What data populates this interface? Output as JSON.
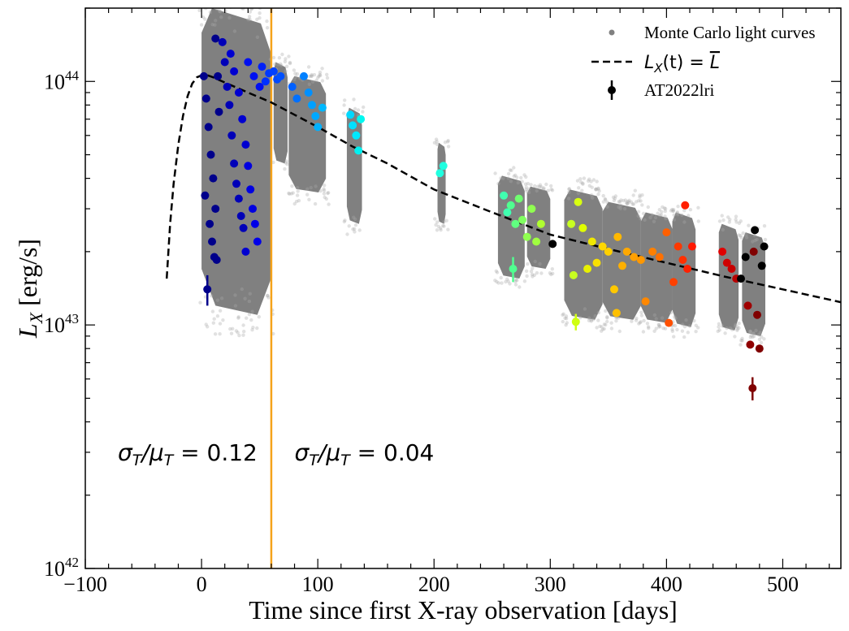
{
  "chart_data": {
    "type": "scatter",
    "xlabel": "Time since first X-ray observation [days]",
    "ylabel_main": "L",
    "ylabel_sub": "X",
    "ylabel_unit": "[erg/s]",
    "xlim": [
      -100,
      550
    ],
    "ylim": [
      1e+42,
      2e+44
    ],
    "yscale": "log",
    "x_ticks": [
      {
        "value": -100,
        "label": "−100"
      },
      {
        "value": 0,
        "label": "0"
      },
      {
        "value": 100,
        "label": "100"
      },
      {
        "value": 200,
        "label": "200"
      },
      {
        "value": 300,
        "label": "300"
      },
      {
        "value": 400,
        "label": "400"
      },
      {
        "value": 500,
        "label": "500"
      }
    ],
    "y_ticks": [
      {
        "value": 1e+42,
        "base": "10",
        "exp": "42"
      },
      {
        "value": 1e+43,
        "base": "10",
        "exp": "43"
      },
      {
        "value": 1e+44,
        "base": "10",
        "exp": "44"
      }
    ],
    "legend": {
      "position": "top-right",
      "entries": [
        {
          "label": "Monte Carlo light curves",
          "kind": "dot"
        },
        {
          "label": "L_X(t) = ̅L",
          "display_main": "L",
          "display_sub": "X",
          "display_rest": "(t) = ",
          "display_bar": "L",
          "kind": "dashed"
        },
        {
          "label": "AT2022lri",
          "kind": "errorbar"
        }
      ]
    },
    "vertical_line": {
      "x": 60,
      "color": "#f5a31a"
    },
    "annotations": [
      {
        "text_left": "σ",
        "sub1": "T",
        "mid": "/μ",
        "sub2": "T",
        "text_right": " = 0.12",
        "x": -72,
        "y": 3e+42
      },
      {
        "text_left": "σ",
        "sub1": "T",
        "mid": "/μ",
        "sub2": "T",
        "text_right": " = 0.04",
        "x": 80,
        "y": 3e+42
      }
    ],
    "model_curve": {
      "name": "L_X(t) = mean L",
      "x": [
        -30,
        -27,
        -24,
        -20,
        -16,
        -12,
        -8,
        -4,
        0,
        5,
        10,
        20,
        40,
        60,
        80,
        100,
        130,
        160,
        200,
        250,
        300,
        350,
        400,
        450,
        500,
        550
      ],
      "y": [
        1.55e+43,
        2.6e+43,
        3.8e+43,
        5.5e+43,
        7.2e+43,
        8.7e+43,
        9.8e+43,
        1.04e+44,
        1.06e+44,
        1.06e+44,
        1.04e+44,
        9.9e+43,
        9e+43,
        8.2e+43,
        7.3e+43,
        6.5e+43,
        5.4e+43,
        4.6e+43,
        3.6e+43,
        2.9e+43,
        2.35e+43,
        2.05e+43,
        1.8e+43,
        1.58e+43,
        1.4e+43,
        1.24e+43
      ]
    },
    "mc_bands": [
      {
        "x0": 0,
        "x1": 60,
        "y_hi": 2e+44,
        "y_lo": 1.1e+43
      },
      {
        "x0": 62,
        "x1": 74,
        "y_hi": 1.2e+44,
        "y_lo": 4.6e+43
      },
      {
        "x0": 75,
        "x1": 107,
        "y_hi": 1.05e+44,
        "y_lo": 3.5e+43
      },
      {
        "x0": 125,
        "x1": 138,
        "y_hi": 7.8e+43,
        "y_lo": 2.6e+43
      },
      {
        "x0": 203,
        "x1": 210,
        "y_hi": 5.6e+43,
        "y_lo": 2.6e+43
      },
      {
        "x0": 255,
        "x1": 278,
        "y_hi": 4.1e+43,
        "y_lo": 1.55e+43
      },
      {
        "x0": 280,
        "x1": 300,
        "y_hi": 3.7e+43,
        "y_lo": 1.7e+43
      },
      {
        "x0": 312,
        "x1": 345,
        "y_hi": 3.6e+43,
        "y_lo": 1.05e+43
      },
      {
        "x0": 345,
        "x1": 378,
        "y_hi": 3.2e+43,
        "y_lo": 1.05e+43
      },
      {
        "x0": 378,
        "x1": 405,
        "y_hi": 2.9e+43,
        "y_lo": 1.02e+43
      },
      {
        "x0": 405,
        "x1": 425,
        "y_hi": 2.9e+43,
        "y_lo": 9.8e+42
      },
      {
        "x0": 445,
        "x1": 462,
        "y_hi": 2.6e+43,
        "y_lo": 9.5e+42
      },
      {
        "x0": 465,
        "x1": 485,
        "y_hi": 2.4e+43,
        "y_lo": 9e+42
      }
    ],
    "observations": [
      {
        "t": 5,
        "L": 1.4e+43,
        "err": 2e+42,
        "color": "#00008b"
      },
      {
        "t": 2,
        "L": 1.05e+44,
        "color": "#00008b"
      },
      {
        "t": 4,
        "L": 8.5e+43,
        "color": "#00008b"
      },
      {
        "t": 6,
        "L": 6.5e+43,
        "color": "#00008b"
      },
      {
        "t": 8,
        "L": 5e+43,
        "color": "#00008b"
      },
      {
        "t": 10,
        "L": 4e+43,
        "color": "#00008b"
      },
      {
        "t": 12,
        "L": 3e+43,
        "color": "#00008b"
      },
      {
        "t": 3,
        "L": 3.4e+43,
        "color": "#00008b"
      },
      {
        "t": 7,
        "L": 2.6e+43,
        "color": "#00008b"
      },
      {
        "t": 9,
        "L": 2.2e+43,
        "color": "#00008b"
      },
      {
        "t": 11,
        "L": 1.9e+43,
        "color": "#00008b"
      },
      {
        "t": 13,
        "L": 1.85e+43,
        "color": "#00008b"
      },
      {
        "t": 14,
        "L": 1.05e+44,
        "color": "#00008b"
      },
      {
        "t": 15,
        "L": 7.5e+43,
        "color": "#00008b"
      },
      {
        "t": 12,
        "L": 1.5e+44,
        "color": "#00008b"
      },
      {
        "t": 18,
        "L": 1.45e+44,
        "color": "#0000b8"
      },
      {
        "t": 20,
        "L": 1.2e+44,
        "color": "#0000b8"
      },
      {
        "t": 22,
        "L": 9.5e+43,
        "color": "#0000b8"
      },
      {
        "t": 24,
        "L": 8e+43,
        "color": "#0000b8"
      },
      {
        "t": 26,
        "L": 6e+43,
        "color": "#0000b8"
      },
      {
        "t": 28,
        "L": 4.6e+43,
        "color": "#0000b8"
      },
      {
        "t": 30,
        "L": 3.8e+43,
        "color": "#0000b8"
      },
      {
        "t": 32,
        "L": 3.3e+43,
        "color": "#0000b8"
      },
      {
        "t": 34,
        "L": 2.8e+43,
        "color": "#0000b8"
      },
      {
        "t": 36,
        "L": 2.5e+43,
        "color": "#0000b8"
      },
      {
        "t": 38,
        "L": 2e+43,
        "color": "#0000d0"
      },
      {
        "t": 25,
        "L": 1.3e+44,
        "color": "#0000d0"
      },
      {
        "t": 28,
        "L": 1.1e+44,
        "color": "#0000d0"
      },
      {
        "t": 32,
        "L": 9e+43,
        "color": "#0000d0"
      },
      {
        "t": 35,
        "L": 7e+43,
        "color": "#0000d0"
      },
      {
        "t": 38,
        "L": 5.5e+43,
        "color": "#0000d0"
      },
      {
        "t": 40,
        "L": 4.5e+43,
        "color": "#0000e0"
      },
      {
        "t": 42,
        "L": 3.6e+43,
        "color": "#0000e0"
      },
      {
        "t": 44,
        "L": 3e+43,
        "color": "#0000e0"
      },
      {
        "t": 46,
        "L": 2.6e+43,
        "color": "#0000e8"
      },
      {
        "t": 48,
        "L": 2.2e+43,
        "color": "#0000e8"
      },
      {
        "t": 40,
        "L": 1.2e+44,
        "color": "#0010f0"
      },
      {
        "t": 45,
        "L": 1.05e+44,
        "color": "#0010f0"
      },
      {
        "t": 50,
        "L": 9.5e+43,
        "color": "#0010f0"
      },
      {
        "t": 52,
        "L": 1.15e+44,
        "color": "#0020f8"
      },
      {
        "t": 55,
        "L": 1e+44,
        "color": "#0030ff"
      },
      {
        "t": 58,
        "L": 1.08e+44,
        "color": "#0038ff"
      },
      {
        "t": 62,
        "L": 1.1e+44,
        "color": "#0040ff"
      },
      {
        "t": 65,
        "L": 1.02e+44,
        "color": "#0048ff"
      },
      {
        "t": 68,
        "L": 1.05e+44,
        "color": "#0050ff"
      },
      {
        "t": 78,
        "L": 9.5e+43,
        "color": "#0060ff"
      },
      {
        "t": 82,
        "L": 8.5e+43,
        "color": "#0070ff"
      },
      {
        "t": 88,
        "L": 1.05e+44,
        "color": "#0080ff"
      },
      {
        "t": 92,
        "L": 9e+43,
        "color": "#0090ff"
      },
      {
        "t": 95,
        "L": 8e+43,
        "color": "#00a0ff"
      },
      {
        "t": 98,
        "L": 7.2e+43,
        "color": "#00a8ff"
      },
      {
        "t": 100,
        "L": 6.5e+43,
        "color": "#00b0ff"
      },
      {
        "t": 104,
        "L": 7.8e+43,
        "color": "#00b8ff"
      },
      {
        "t": 128,
        "L": 7.3e+43,
        "color": "#00d8ff"
      },
      {
        "t": 130,
        "L": 6.6e+43,
        "color": "#00e0ff"
      },
      {
        "t": 133,
        "L": 6e+43,
        "color": "#00e8ff"
      },
      {
        "t": 135,
        "L": 5.2e+43,
        "color": "#00f0f0"
      },
      {
        "t": 137,
        "L": 7e+43,
        "color": "#00f8f0"
      },
      {
        "t": 205,
        "L": 4.2e+43,
        "color": "#20ffe0"
      },
      {
        "t": 208,
        "L": 4.5e+43,
        "color": "#20ffe0"
      },
      {
        "t": 260,
        "L": 3.4e+43,
        "color": "#40ffb0"
      },
      {
        "t": 263,
        "L": 2.9e+43,
        "color": "#40ffb0"
      },
      {
        "t": 266,
        "L": 3.1e+43,
        "color": "#50ff90"
      },
      {
        "t": 268,
        "L": 1.7e+43,
        "err": 2e+42,
        "color": "#50ff90"
      },
      {
        "t": 270,
        "L": 2.6e+43,
        "color": "#60ff80"
      },
      {
        "t": 273,
        "L": 3.3e+43,
        "color": "#70ff70"
      },
      {
        "t": 276,
        "L": 2.7e+43,
        "color": "#80ff60"
      },
      {
        "t": 280,
        "L": 2.3e+43,
        "color": "#90ff50"
      },
      {
        "t": 284,
        "L": 3e+43,
        "color": "#90ff50"
      },
      {
        "t": 288,
        "L": 2.2e+43,
        "color": "#a0ff40"
      },
      {
        "t": 292,
        "L": 2.6e+43,
        "color": "#b0ff30"
      },
      {
        "t": 302,
        "L": 2.15e+43,
        "color": "#000000"
      },
      {
        "t": 318,
        "L": 2.6e+43,
        "color": "#c8ff20"
      },
      {
        "t": 320,
        "L": 1.6e+43,
        "color": "#c8ff20"
      },
      {
        "t": 322,
        "L": 1.03e+43,
        "err": 8e+41,
        "color": "#d0ff10"
      },
      {
        "t": 324,
        "L": 3.2e+43,
        "color": "#d8ff10"
      },
      {
        "t": 328,
        "L": 2.5e+43,
        "color": "#e0ff00"
      },
      {
        "t": 332,
        "L": 1.7e+43,
        "color": "#e8f000"
      },
      {
        "t": 336,
        "L": 2.2e+43,
        "color": "#f0e800"
      },
      {
        "t": 340,
        "L": 1.8e+43,
        "color": "#f8e000"
      },
      {
        "t": 345,
        "L": 2.1e+43,
        "color": "#ffd800"
      },
      {
        "t": 350,
        "L": 2e+43,
        "color": "#ffd000"
      },
      {
        "t": 355,
        "L": 1.4e+43,
        "color": "#ffc800"
      },
      {
        "t": 357,
        "L": 1.12e+43,
        "color": "#ffc000"
      },
      {
        "t": 358,
        "L": 2.3e+43,
        "color": "#ffb800"
      },
      {
        "t": 362,
        "L": 1.75e+43,
        "color": "#ffb000"
      },
      {
        "t": 366,
        "L": 2e+43,
        "color": "#ffa800"
      },
      {
        "t": 372,
        "L": 1.9e+43,
        "color": "#ffa000"
      },
      {
        "t": 378,
        "L": 1.85e+43,
        "color": "#ff9800"
      },
      {
        "t": 382,
        "L": 1.25e+43,
        "color": "#ff8800"
      },
      {
        "t": 388,
        "L": 2e+43,
        "color": "#ff8000"
      },
      {
        "t": 394,
        "L": 1.9e+43,
        "color": "#ff7000"
      },
      {
        "t": 400,
        "L": 2.4e+43,
        "color": "#ff6000"
      },
      {
        "t": 402,
        "L": 1.02e+43,
        "color": "#ff5000"
      },
      {
        "t": 406,
        "L": 1.5e+43,
        "color": "#ff4000"
      },
      {
        "t": 410,
        "L": 2.1e+43,
        "color": "#ff3800"
      },
      {
        "t": 414,
        "L": 1.85e+43,
        "color": "#ff3000"
      },
      {
        "t": 416,
        "L": 3.1e+43,
        "color": "#ff2000"
      },
      {
        "t": 418,
        "L": 1.7e+43,
        "color": "#ff2000"
      },
      {
        "t": 422,
        "L": 2.1e+43,
        "color": "#ff1800"
      },
      {
        "t": 448,
        "L": 2e+43,
        "color": "#e00000"
      },
      {
        "t": 452,
        "L": 1.8e+43,
        "color": "#d00000"
      },
      {
        "t": 456,
        "L": 1.7e+43,
        "color": "#c80000"
      },
      {
        "t": 460,
        "L": 1.55e+43,
        "color": "#b80000"
      },
      {
        "t": 464,
        "L": 1.55e+43,
        "color": "#000000"
      },
      {
        "t": 468,
        "L": 1.9e+43,
        "color": "#000000"
      },
      {
        "t": 470,
        "L": 1.2e+43,
        "color": "#a00000"
      },
      {
        "t": 472,
        "L": 8.3e+42,
        "color": "#900000"
      },
      {
        "t": 474,
        "L": 5.5e+42,
        "err": 6e+41,
        "color": "#800000"
      },
      {
        "t": 475,
        "L": 2e+43,
        "color": "#800000"
      },
      {
        "t": 476,
        "L": 2.45e+43,
        "color": "#000000"
      },
      {
        "t": 478,
        "L": 1.1e+43,
        "color": "#800000"
      },
      {
        "t": 480,
        "L": 8e+42,
        "color": "#800000"
      },
      {
        "t": 482,
        "L": 1.75e+43,
        "color": "#000000"
      },
      {
        "t": 484,
        "L": 2.1e+43,
        "color": "#000000"
      }
    ]
  }
}
